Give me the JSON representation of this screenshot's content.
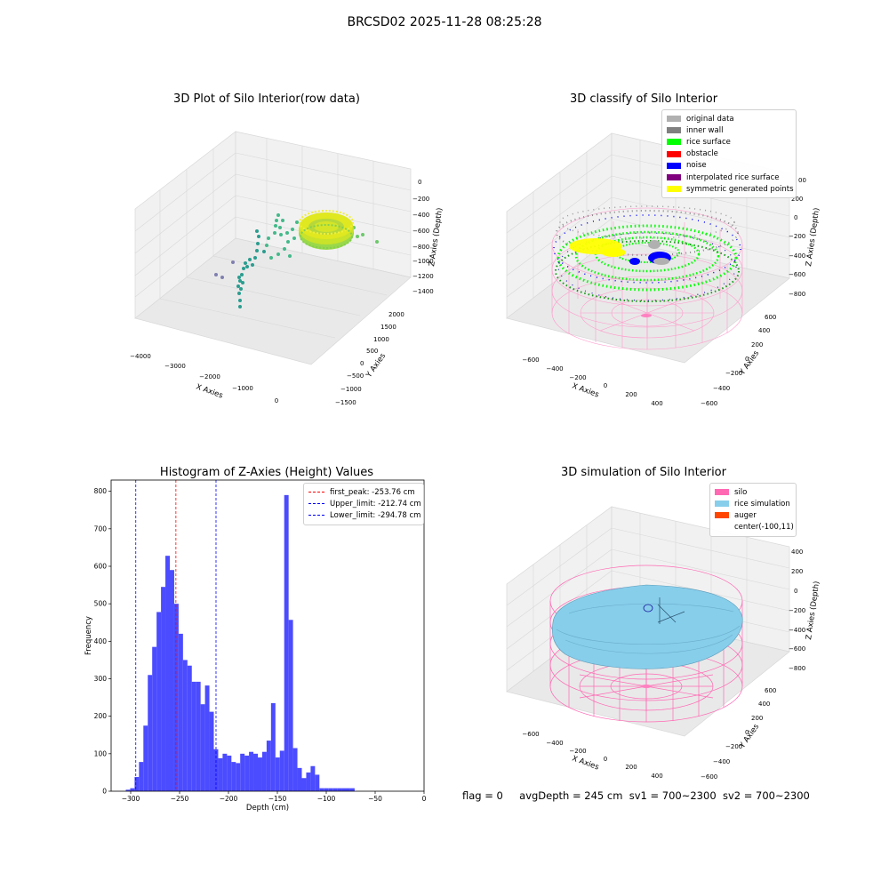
{
  "suptitle": "BRCSD02 2025-11-28 08:25:28",
  "colors": {
    "original": "#b0b0b0",
    "wall": "#808080",
    "rice": "#00ff00",
    "obstacle": "#ff0000",
    "noise": "#0000ff",
    "interp": "#800080",
    "sym": "#ffff00",
    "silo": "#ff69b4",
    "rice_sim": "#87ceeb",
    "auger": "#ff4500",
    "hist": "#4b4bff"
  },
  "panel1": {
    "title": "3D Plot of Silo Interior(row data)",
    "xlabel": "X Axies",
    "ylabel": "Y Axies",
    "zlabel": "Z Axies (Depth)",
    "xticks": [
      "−4000",
      "−3000",
      "−2000",
      "−1000",
      "0"
    ],
    "yticks": [
      "−1500",
      "−1000",
      "−500",
      "0",
      "500",
      "1000",
      "1500",
      "2000"
    ],
    "zticks": [
      "0",
      "−200",
      "−400",
      "−600",
      "−800",
      "−1000",
      "−1200",
      "−1400"
    ]
  },
  "panel2": {
    "title": "3D classify of Silo Interior",
    "xlabel": "X Axies",
    "ylabel": "Y Axies",
    "zlabel": "Z Axies (Depth)",
    "xticks": [
      "−600",
      "−400",
      "−200",
      "0",
      "200",
      "400"
    ],
    "yticks": [
      "−600",
      "−400",
      "−200",
      "0",
      "200",
      "400",
      "600"
    ],
    "zticks": [
      "200",
      "0",
      "−200",
      "−400",
      "−600",
      "−800"
    ],
    "zticks_partial": "00",
    "legend": [
      "original data",
      "inner wall",
      "rice surface",
      "obstacle",
      "noise",
      "interpolated rice surface",
      "symmetric generated points"
    ]
  },
  "panel3": {
    "title": "Histogram of Z-Axies (Height) Values",
    "xlabel": "Depth (cm)",
    "ylabel": "Frequency",
    "legend": [
      "first_peak: -253.76 cm",
      "Upper_limit: -212.74 cm",
      "Lower_limit: -294.78 cm"
    ]
  },
  "panel4": {
    "title": "3D simulation of Silo Interior",
    "xlabel": "X Axies",
    "ylabel": "Y Axies",
    "zlabel": "Z Axies (Depth)",
    "xticks": [
      "−600",
      "−400",
      "−200",
      "0",
      "200",
      "400"
    ],
    "yticks": [
      "−600",
      "−400",
      "−200",
      "0",
      "200",
      "400",
      "600"
    ],
    "zticks": [
      "400",
      "200",
      "0",
      "−200",
      "−400",
      "−600",
      "−800"
    ],
    "legend": [
      "silo",
      "rice simulation",
      "auger",
      "center(-100,11)"
    ]
  },
  "footer": {
    "flag": "flag = 0",
    "avg": "avgDepth = 245 cm",
    "sv1": "sv1 = 700~2300",
    "sv2": "sv2 = 700~2300"
  },
  "chart_data": [
    {
      "type": "histogram",
      "title": "Histogram of Z-Axies (Height) Values",
      "xlabel": "Depth (cm)",
      "ylabel": "Frequency",
      "xlim": [
        -320,
        0
      ],
      "ylim": [
        0,
        830
      ],
      "xticks": [
        -300,
        -250,
        -200,
        -150,
        -100,
        -50,
        0
      ],
      "yticks": [
        0,
        100,
        200,
        300,
        400,
        500,
        600,
        700,
        800
      ],
      "bin_start": -305,
      "bin_width": 4.5,
      "counts": [
        4,
        8,
        38,
        78,
        175,
        310,
        385,
        478,
        545,
        628,
        590,
        500,
        420,
        350,
        335,
        292,
        292,
        232,
        282,
        212,
        112,
        88,
        100,
        95,
        78,
        75,
        100,
        95,
        105,
        100,
        90,
        105,
        135,
        235,
        90,
        108,
        790,
        457,
        115,
        62,
        35,
        50,
        67,
        44,
        8,
        8,
        8,
        8,
        8,
        8,
        8,
        8
      ],
      "vlines": [
        {
          "name": "first_peak: -253.76 cm",
          "x": -253.76,
          "color": "#ff0000"
        },
        {
          "name": "Upper_limit: -212.74 cm",
          "x": -212.74,
          "color": "#0000ff"
        },
        {
          "name": "Lower_limit: -294.78 cm",
          "x": -294.78,
          "color": "#0000ff"
        }
      ],
      "legend": "top-right"
    }
  ]
}
